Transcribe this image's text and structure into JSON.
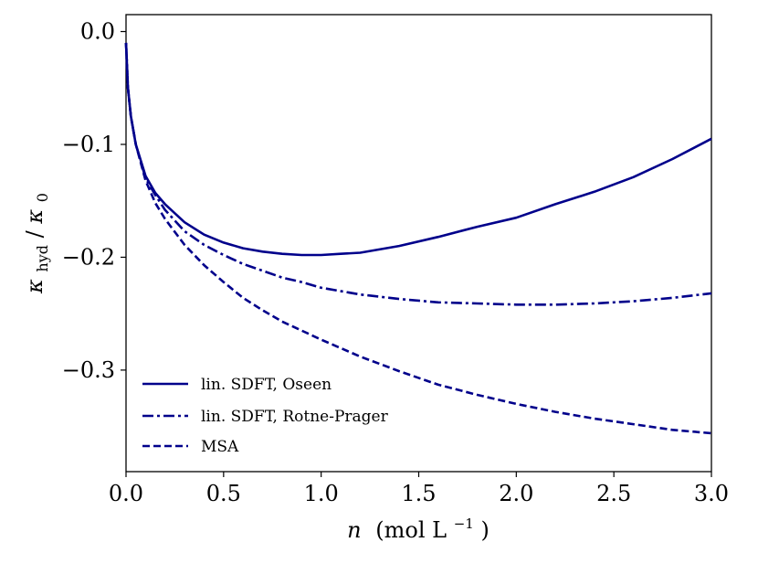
{
  "chart_data": {
    "type": "line",
    "title": "",
    "xlabel": {
      "main": "n",
      "paren": "(mol L",
      "sup": "−1",
      "close": ")"
    },
    "ylabel": {
      "kappa1": "κ",
      "sub1": "hyd",
      "slash": "/",
      "kappa2": "κ",
      "sub2": "0"
    },
    "xlim": [
      0.0,
      3.0
    ],
    "ylim": [
      -0.39,
      0.015
    ],
    "xticks": [
      0.0,
      0.5,
      1.0,
      1.5,
      2.0,
      2.5,
      3.0
    ],
    "xtick_labels": [
      "0.0",
      "0.5",
      "1.0",
      "1.5",
      "2.0",
      "2.5",
      "3.0"
    ],
    "yticks": [
      0.0,
      -0.1,
      -0.2,
      -0.3
    ],
    "ytick_labels": [
      "0.0",
      "−0.1",
      "−0.2",
      "−0.3"
    ],
    "grid": false,
    "legend_position": "lower-left",
    "series": [
      {
        "name": "lin. SDFT, Oseen",
        "style": "solid",
        "x": [
          0.0,
          0.01,
          0.025,
          0.05,
          0.1,
          0.15,
          0.2,
          0.3,
          0.4,
          0.5,
          0.6,
          0.7,
          0.8,
          0.9,
          1.0,
          1.1,
          1.2,
          1.4,
          1.6,
          1.8,
          2.0,
          2.2,
          2.4,
          2.6,
          2.8,
          3.0
        ],
        "y": [
          -0.01,
          -0.05,
          -0.075,
          -0.1,
          -0.128,
          -0.143,
          -0.153,
          -0.169,
          -0.18,
          -0.187,
          -0.192,
          -0.195,
          -0.197,
          -0.198,
          -0.198,
          -0.197,
          -0.196,
          -0.19,
          -0.182,
          -0.173,
          -0.165,
          -0.153,
          -0.142,
          -0.129,
          -0.113,
          -0.095
        ]
      },
      {
        "name": "lin. SDFT, Rotne-Prager",
        "style": "dashdot",
        "x": [
          0.0,
          0.01,
          0.025,
          0.05,
          0.1,
          0.15,
          0.2,
          0.3,
          0.4,
          0.5,
          0.6,
          0.7,
          0.8,
          0.9,
          1.0,
          1.2,
          1.4,
          1.6,
          1.8,
          2.0,
          2.2,
          2.4,
          2.6,
          2.8,
          3.0
        ],
        "y": [
          -0.01,
          -0.05,
          -0.075,
          -0.1,
          -0.13,
          -0.145,
          -0.158,
          -0.177,
          -0.189,
          -0.198,
          -0.206,
          -0.212,
          -0.218,
          -0.222,
          -0.227,
          -0.233,
          -0.237,
          -0.24,
          -0.241,
          -0.242,
          -0.242,
          -0.241,
          -0.239,
          -0.236,
          -0.232
        ]
      },
      {
        "name": "MSA",
        "style": "dashed",
        "x": [
          0.0,
          0.01,
          0.025,
          0.05,
          0.1,
          0.15,
          0.2,
          0.3,
          0.4,
          0.5,
          0.6,
          0.7,
          0.8,
          0.9,
          1.0,
          1.2,
          1.4,
          1.6,
          1.8,
          2.0,
          2.2,
          2.4,
          2.6,
          2.8,
          3.0
        ],
        "y": [
          -0.01,
          -0.05,
          -0.075,
          -0.1,
          -0.132,
          -0.152,
          -0.166,
          -0.189,
          -0.207,
          -0.222,
          -0.236,
          -0.247,
          -0.257,
          -0.265,
          -0.273,
          -0.288,
          -0.301,
          -0.313,
          -0.322,
          -0.33,
          -0.337,
          -0.343,
          -0.348,
          -0.353,
          -0.356
        ]
      }
    ]
  },
  "colors": {
    "line": "#00008b",
    "axes": "#000000",
    "background": "#ffffff"
  }
}
